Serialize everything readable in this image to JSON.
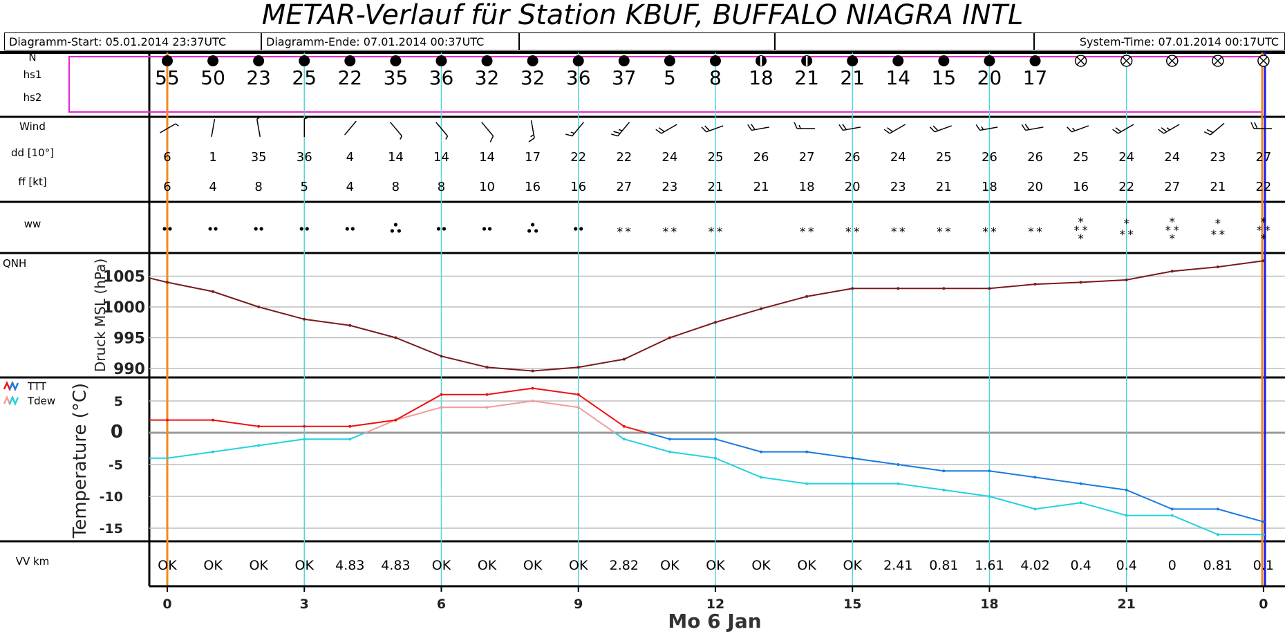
{
  "header": {
    "title": "METAR-Verlauf für Station KBUF, BUFFALO NIAGRA INTL",
    "start": "Diagramm-Start: 05.01.2014 23:37UTC",
    "end": "Diagramm-Ende: 07.01.2014 00:37UTC",
    "system_time": "System-Time: 07.01.2014 00:17UTC"
  },
  "labels": {
    "cloud_n": "N",
    "hs1": "hs1",
    "hs2": "hs2",
    "wind": "Wind",
    "dd": "dd [10°]",
    "ff": "ff [kt]",
    "ww": "ww",
    "qnh": "QNH",
    "pressure_axis": "Druck MSL (hPa)",
    "ttt": "TTT",
    "tdew": "Tdew",
    "temp_axis": "Temperature (°C)",
    "vv": "VV km",
    "date": "Mo 6 Jan"
  },
  "colors": {
    "pressure": "#7a1a1a",
    "temp_above": "#ee1111",
    "temp_below": "#1a7ae0",
    "dew_above": "#f49a9a",
    "dew_below": "#22d2e0",
    "guide": "#4fd6dc",
    "now_line": "#f08a1c",
    "end_line": "#1a1aee",
    "cloud_box": "#ee22cc"
  },
  "chart_data": {
    "type": "line",
    "x_hours": [
      0,
      1,
      2,
      3,
      4,
      5,
      6,
      7,
      8,
      9,
      10,
      11,
      12,
      13,
      14,
      15,
      16,
      17,
      18,
      19,
      20,
      21,
      22,
      23,
      24
    ],
    "x_ticks": [
      {
        "h": 0,
        "label": "0"
      },
      {
        "h": 3,
        "label": "3"
      },
      {
        "h": 6,
        "label": "6"
      },
      {
        "h": 9,
        "label": "9"
      },
      {
        "h": 12,
        "label": "12"
      },
      {
        "h": 15,
        "label": "15"
      },
      {
        "h": 18,
        "label": "18"
      },
      {
        "h": 21,
        "label": "21"
      },
      {
        "h": 24,
        "label": "0"
      }
    ],
    "cloud_cover": [
      "ovc",
      "ovc",
      "ovc",
      "ovc",
      "ovc",
      "ovc",
      "ovc",
      "ovc",
      "ovc",
      "ovc",
      "ovc",
      "ovc",
      "ovc",
      "bkn",
      "bkn",
      "ovc",
      "ovc",
      "ovc",
      "ovc",
      "ovc",
      "obscured",
      "obscured",
      "obscured",
      "obscured",
      "obscured"
    ],
    "hs1": [
      "55",
      "50",
      "23",
      "25",
      "22",
      "35",
      "36",
      "32",
      "32",
      "36",
      "37",
      "5",
      "8",
      "18",
      "21",
      "21",
      "14",
      "15",
      "20",
      "17",
      "",
      "",
      "",
      "",
      ""
    ],
    "wind_dd": [
      "6",
      "1",
      "35",
      "36",
      "4",
      "14",
      "14",
      "14",
      "17",
      "22",
      "22",
      "24",
      "25",
      "26",
      "27",
      "26",
      "24",
      "25",
      "26",
      "26",
      "25",
      "24",
      "24",
      "23",
      "27"
    ],
    "wind_ff": [
      "6",
      "4",
      "8",
      "5",
      "4",
      "8",
      "8",
      "10",
      "16",
      "16",
      "27",
      "23",
      "21",
      "21",
      "18",
      "20",
      "23",
      "21",
      "18",
      "20",
      "16",
      "22",
      "27",
      "21",
      "22"
    ],
    "ww": [
      "drizzle",
      "drizzle",
      "drizzle",
      "drizzle",
      "drizzle",
      "drizzle_heavy",
      "drizzle",
      "drizzle",
      "drizzle_heavy",
      "drizzle",
      "snow",
      "snow",
      "snow",
      "",
      "snow",
      "snow",
      "snow",
      "snow",
      "snow",
      "snow",
      "snow_heavy",
      "snow_moderate",
      "snow_heavy",
      "snow_moderate",
      "snow_heavy"
    ],
    "pressure": {
      "ylabel": "Druck MSL (hPa)",
      "ylim": [
        988,
        1009
      ],
      "ticks": [
        990,
        995,
        1000,
        1005
      ],
      "values": [
        1004,
        1002.5,
        1000,
        998,
        997,
        995,
        992,
        990.2,
        989.6,
        990.2,
        991.5,
        995,
        997.5,
        999.7,
        1001.7,
        1003,
        1003,
        1003,
        1003,
        1003.7,
        1004,
        1004.4,
        1005.8,
        1006.5,
        1007.5
      ]
    },
    "temperature": {
      "ylabel": "Temperature (°C)",
      "ylim": [
        -17,
        8
      ],
      "ticks": [
        5,
        0,
        -5,
        -10,
        -15
      ],
      "series": [
        {
          "name": "TTT",
          "values": [
            2,
            2,
            1,
            1,
            1,
            2,
            6,
            6,
            7,
            6,
            1,
            -1,
            -1,
            -3,
            -3,
            -4,
            -5,
            -6,
            -6,
            -7,
            -8,
            -9,
            -12,
            -12,
            -14
          ]
        },
        {
          "name": "Tdew",
          "values": [
            -4,
            -3,
            -2,
            -1,
            -1,
            2,
            4,
            4,
            5,
            4,
            -1,
            -3,
            -4,
            -7,
            -8,
            -8,
            -8,
            -9,
            -10,
            -12,
            -11,
            -13,
            -13,
            -16,
            -16
          ]
        }
      ]
    },
    "visibility": [
      "OK",
      "OK",
      "OK",
      "OK",
      "4.83",
      "4.83",
      "OK",
      "OK",
      "OK",
      "OK",
      "2.82",
      "OK",
      "OK",
      "OK",
      "OK",
      "OK",
      "2.41",
      "0.81",
      "1.61",
      "4.02",
      "0.4",
      "0.4",
      "0",
      "0.81",
      "0.1"
    ]
  }
}
